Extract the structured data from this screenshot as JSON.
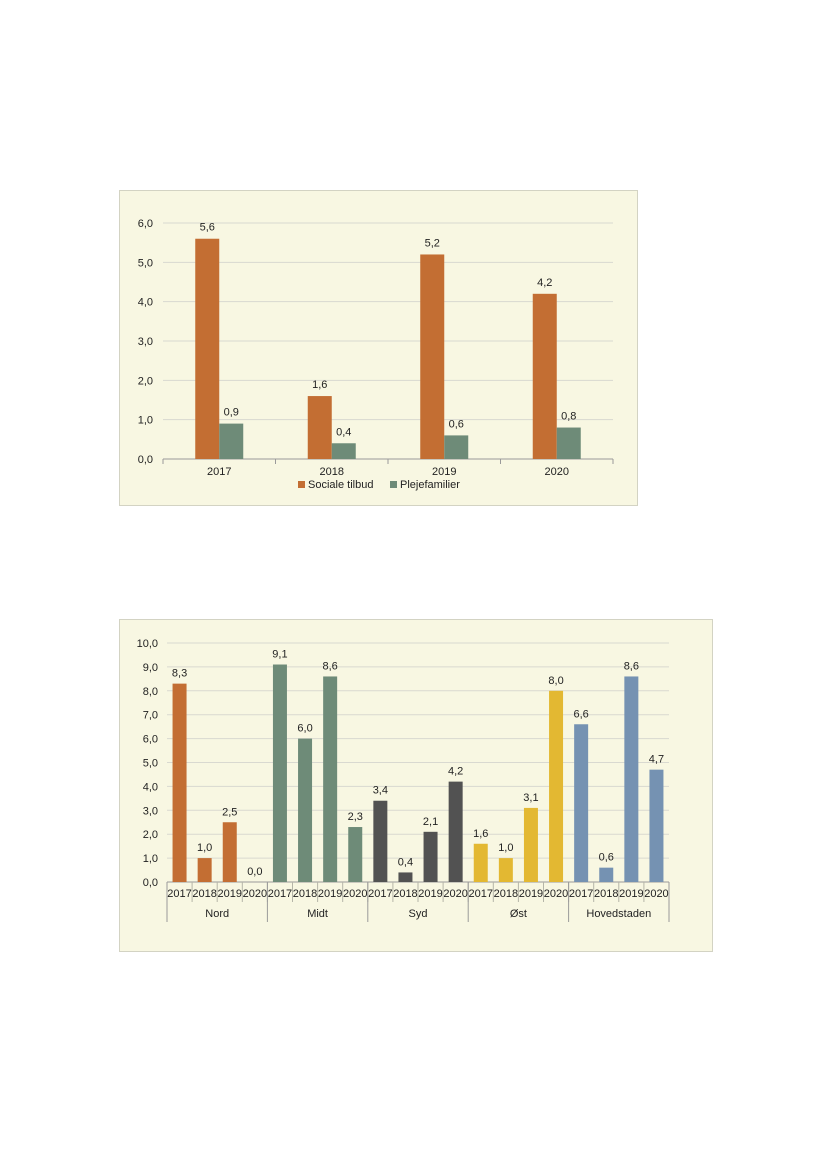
{
  "chart_data": [
    {
      "type": "bar",
      "categories": [
        "2017",
        "2018",
        "2019",
        "2020"
      ],
      "series": [
        {
          "name": "Sociale tilbud",
          "values": [
            5.6,
            1.6,
            5.2,
            4.2
          ],
          "labels": [
            "5,6",
            "1,6",
            "5,2",
            "4,2"
          ],
          "color": "#c36e33"
        },
        {
          "name": "Plejefamilier",
          "values": [
            0.9,
            0.4,
            0.6,
            0.8
          ],
          "labels": [
            "0,9",
            "0,4",
            "0,6",
            "0,8"
          ],
          "color": "#6e8b78"
        }
      ],
      "ylim": [
        0,
        6
      ],
      "yticks": [
        "0,0",
        "1,0",
        "2,0",
        "3,0",
        "4,0",
        "5,0",
        "6,0"
      ],
      "grid": true,
      "legend": "bottom"
    },
    {
      "type": "bar",
      "groups": [
        {
          "name": "Nord",
          "color": "#c36e33",
          "categories": [
            "2017",
            "2018",
            "2019",
            "2020"
          ],
          "values": [
            8.3,
            1.0,
            2.5,
            0.0
          ],
          "labels": [
            "8,3",
            "1,0",
            "2,5",
            "0,0"
          ]
        },
        {
          "name": "Midt",
          "color": "#6e8b78",
          "categories": [
            "2017",
            "2018",
            "2019",
            "2020"
          ],
          "values": [
            9.1,
            6.0,
            8.6,
            2.3
          ],
          "labels": [
            "9,1",
            "6,0",
            "8,6",
            "2,3"
          ]
        },
        {
          "name": "Syd",
          "color": "#525252",
          "categories": [
            "2017",
            "2018",
            "2019",
            "2020"
          ],
          "values": [
            3.4,
            0.4,
            2.1,
            4.2
          ],
          "labels": [
            "3,4",
            "0,4",
            "2,1",
            "4,2"
          ]
        },
        {
          "name": "Øst",
          "color": "#e3b832",
          "categories": [
            "2017",
            "2018",
            "2019",
            "2020"
          ],
          "values": [
            1.6,
            1.0,
            3.1,
            8.0
          ],
          "labels": [
            "1,6",
            "1,0",
            "3,1",
            "8,0"
          ]
        },
        {
          "name": "Hovedstaden",
          "color": "#7592b2",
          "categories": [
            "2017",
            "2018",
            "2019",
            "2020"
          ],
          "values": [
            6.6,
            0.6,
            8.6,
            4.7
          ],
          "labels": [
            "6,6",
            "0,6",
            "8,6",
            "4,7"
          ]
        }
      ],
      "ylim": [
        0,
        10
      ],
      "yticks": [
        "0,0",
        "1,0",
        "2,0",
        "3,0",
        "4,0",
        "5,0",
        "6,0",
        "7,0",
        "8,0",
        "9,0",
        "10,0"
      ],
      "grid": true
    }
  ]
}
